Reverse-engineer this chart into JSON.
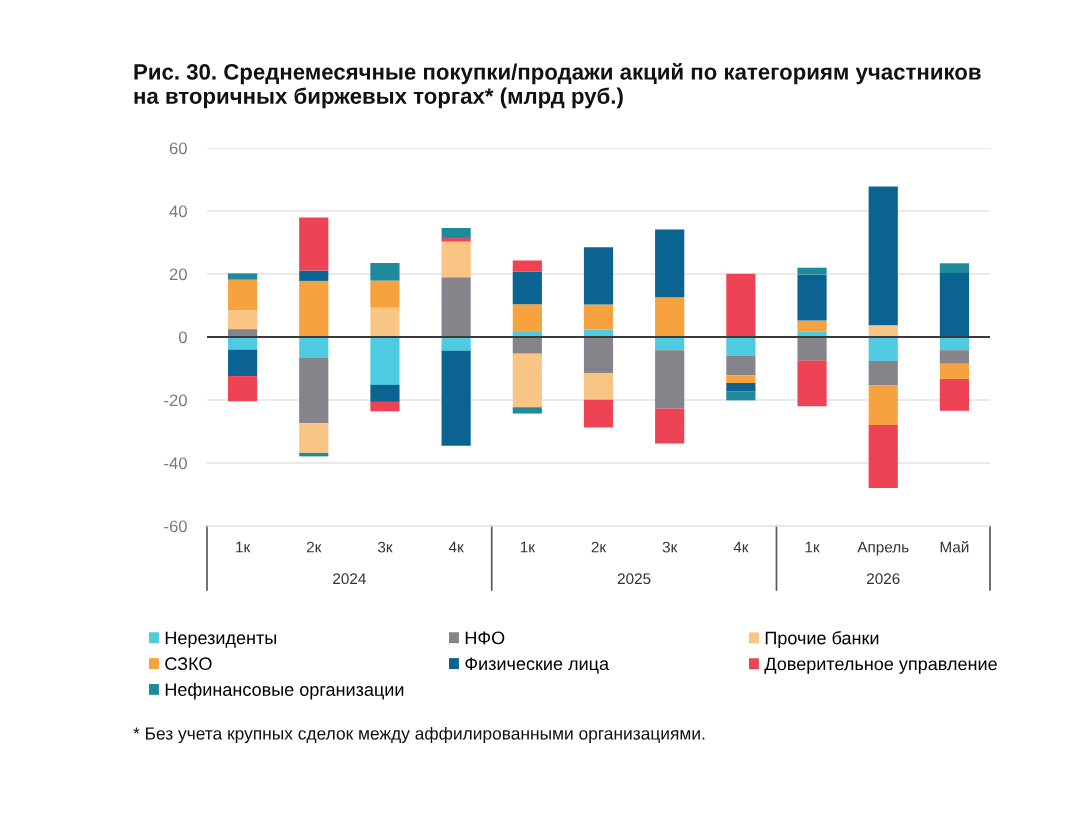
{
  "chart_data": {
    "type": "bar",
    "stacked": true,
    "title": "Рис. 30. Среднемесячные покупки/продажи акций по категориям участников\nна вторичных биржевых торгах* (млрд руб.)",
    "categories": [
      "1к",
      "2к",
      "3к",
      "4к",
      "1к",
      "2к",
      "3к",
      "4к",
      "1к",
      "Апрель",
      "Май"
    ],
    "series": [
      {
        "name": "Нерезиденты",
        "color": "#4ecbe0",
        "values": [
          -4.0,
          -6.7,
          -15.2,
          -4.4,
          1.6,
          2.4,
          -4.2,
          -5.9,
          1.8,
          -7.6,
          -4.2
        ]
      },
      {
        "name": "НФО",
        "color": "#85848a",
        "values": [
          2.5,
          -20.7,
          null,
          19.0,
          -5.3,
          -11.4,
          -18.5,
          -6.3,
          -7.5,
          -7.8,
          -4.3
        ]
      },
      {
        "name": "Прочие банки",
        "color": "#f9c584",
        "values": [
          6.0,
          -9.4,
          9.3,
          11.3,
          -17.0,
          -8.5,
          null,
          null,
          null,
          3.7,
          null
        ]
      },
      {
        "name": "СЗКО",
        "color": "#f6a23e",
        "values": [
          9.7,
          17.8,
          8.6,
          null,
          8.8,
          7.9,
          12.6,
          -2.4,
          3.4,
          -12.5,
          -4.8
        ]
      },
      {
        "name": "Физические лица",
        "color": "#0b6391",
        "values": [
          -8.4,
          3.3,
          -5.4,
          -30.1,
          10.4,
          18.2,
          21.5,
          -2.6,
          14.6,
          44.1,
          20.3
        ]
      },
      {
        "name": "Доверительное управление",
        "color": "#ee4354",
        "values": [
          -8.0,
          16.8,
          -3.0,
          1.1,
          3.5,
          -8.8,
          -11.1,
          20.1,
          -14.5,
          -20.0,
          -10.1
        ]
      },
      {
        "name": "Нефинансовые организации",
        "color": "#1f8a9c",
        "values": [
          2.0,
          -1.1,
          5.6,
          3.2,
          -2.0,
          null,
          null,
          -2.9,
          2.2,
          null,
          3.1
        ]
      }
    ],
    "ylim": [
      -60,
      60
    ],
    "yticks": [
      -60,
      -40,
      -20,
      0,
      20,
      40,
      60
    ],
    "grid": "y",
    "legend": "bottom",
    "ref_lines": [
      {
        "axis": "y",
        "value": 0,
        "color": "#3a3a3a"
      }
    ],
    "annotations": [
      "2024",
      "2025",
      "2026",
      "* Без учета крупных сделок между аффилированными организациями."
    ]
  }
}
